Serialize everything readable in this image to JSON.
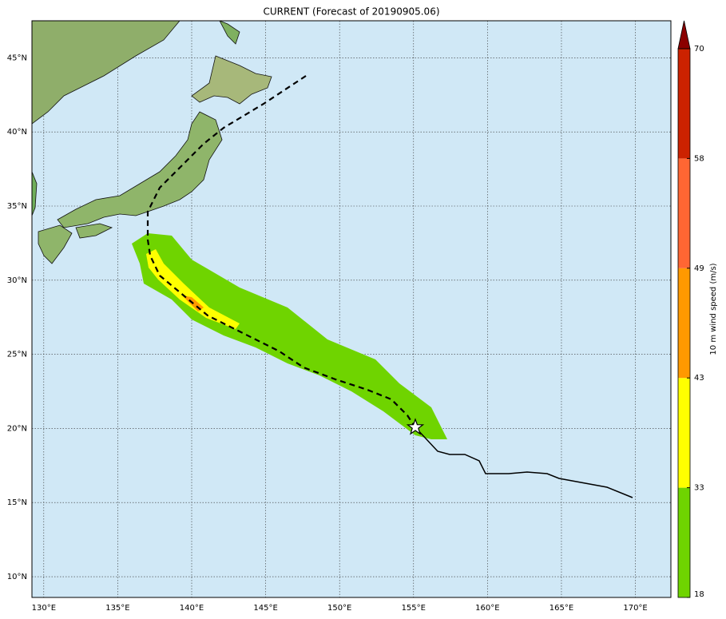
{
  "map": {
    "title": "CURRENT (Forecast of 20190905.06)",
    "lon_range": [
      129.2,
      172.4
    ],
    "lat_range": [
      8.6,
      47.5
    ],
    "lon_ticks": [
      {
        "value": 130,
        "label": "130°E"
      },
      {
        "value": 135,
        "label": "135°E"
      },
      {
        "value": 140,
        "label": "140°E"
      },
      {
        "value": 145,
        "label": "145°E"
      },
      {
        "value": 150,
        "label": "150°E"
      },
      {
        "value": 155,
        "label": "155°E"
      },
      {
        "value": 160,
        "label": "160°E"
      },
      {
        "value": 165,
        "label": "165°E"
      },
      {
        "value": 170,
        "label": "170°E"
      }
    ],
    "lat_ticks": [
      {
        "value": 10,
        "label": "10°N"
      },
      {
        "value": 15,
        "label": "15°N"
      },
      {
        "value": 20,
        "label": "20°N"
      },
      {
        "value": 25,
        "label": "25°N"
      },
      {
        "value": 30,
        "label": "30°N"
      },
      {
        "value": 35,
        "label": "35°N"
      },
      {
        "value": 40,
        "label": "40°N"
      },
      {
        "value": 45,
        "label": "45°N"
      }
    ],
    "colorbar": {
      "label": "10 m wind speed (m/s)",
      "levels": [
        18,
        33,
        43,
        49,
        58,
        70
      ],
      "colors": [
        "#6fd400",
        "#ffff00",
        "#ff9900",
        "#ff6633",
        "#cc2200"
      ],
      "extend_color": "#8b0000"
    }
  }
}
